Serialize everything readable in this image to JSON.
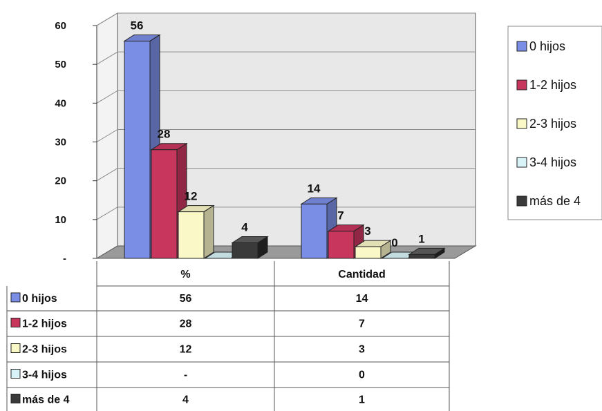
{
  "chart_data": {
    "type": "bar",
    "categories": [
      "%",
      "Cantidad"
    ],
    "series": [
      {
        "name": "0 hijos",
        "values": [
          56,
          14
        ],
        "labels": [
          "56",
          "14"
        ],
        "color": "#7b8ee6"
      },
      {
        "name": "1-2 hijos",
        "values": [
          28,
          7
        ],
        "labels": [
          "28",
          "7"
        ],
        "color": "#c8365e"
      },
      {
        "name": "2-3 hijos",
        "values": [
          12,
          3
        ],
        "labels": [
          "12",
          "3"
        ],
        "color": "#fbf8c8"
      },
      {
        "name": "3-4 hijos",
        "values": [
          0,
          0
        ],
        "labels": [
          "",
          "0"
        ],
        "color": "#d8f4f8"
      },
      {
        "name": "más de 4",
        "values": [
          4,
          1
        ],
        "labels": [
          "4",
          "1"
        ],
        "color": "#3a3a3a"
      }
    ],
    "table_values": [
      [
        "56",
        "14"
      ],
      [
        "28",
        "7"
      ],
      [
        "12",
        "3"
      ],
      [
        "-",
        "0"
      ],
      [
        "4",
        "1"
      ]
    ],
    "y_ticks": [
      "-",
      "10",
      "20",
      "30",
      "40",
      "50",
      "60"
    ],
    "ylim": [
      0,
      60
    ],
    "grid": true,
    "legend": "right",
    "title": "",
    "xlabel": "",
    "ylabel": ""
  }
}
